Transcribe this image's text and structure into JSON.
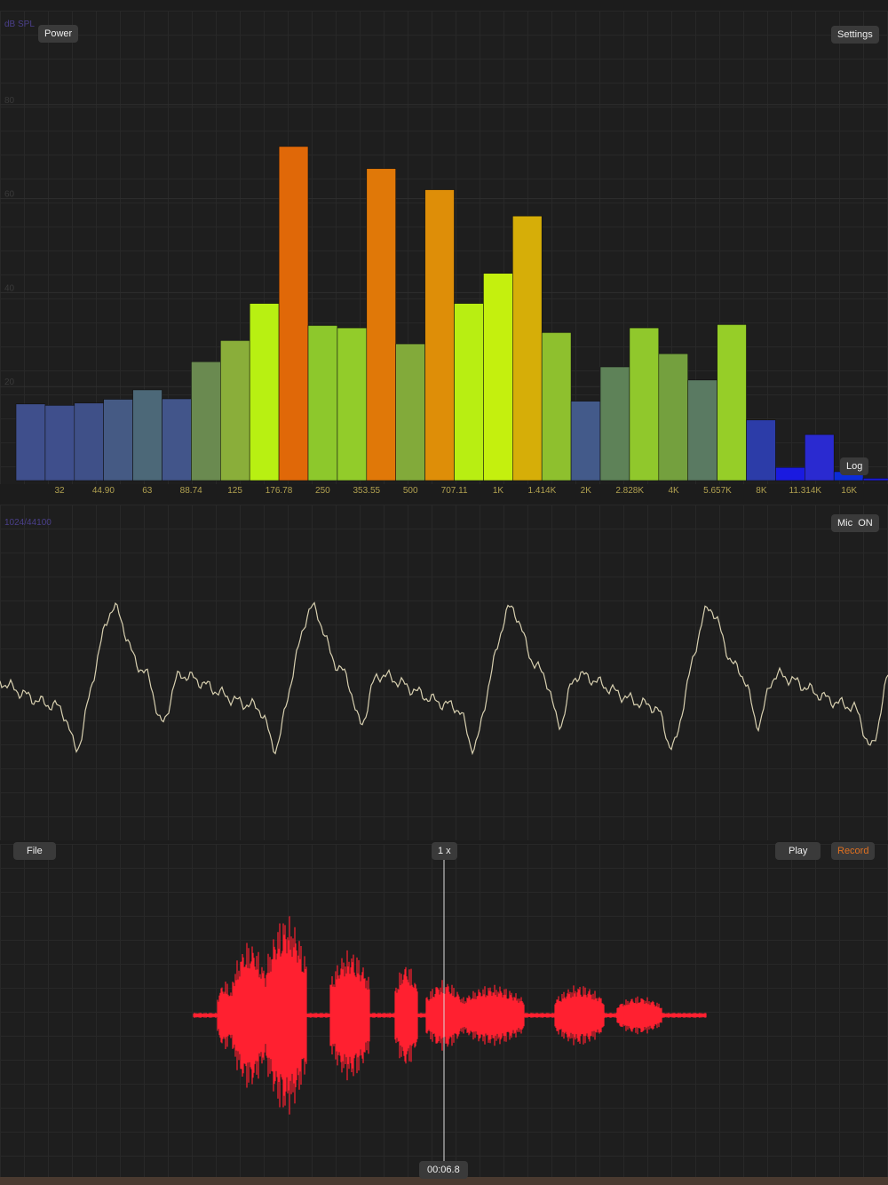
{
  "spectrum": {
    "type": "bar",
    "y_label": "dB SPL",
    "ylim": [
      0,
      100
    ],
    "yticks": [
      20,
      40,
      60,
      80
    ],
    "values": [
      16.3,
      16,
      16.5,
      17.3,
      19.3,
      17.4,
      25.3,
      29.8,
      37.7,
      71.1,
      33,
      32.5,
      66.4,
      29.1,
      61.9,
      37.7,
      44.1,
      56.3,
      31.5,
      16.9,
      24.2,
      32.5,
      27,
      21.4,
      33.2,
      12.9,
      2.8,
      9.8,
      1.9,
      0.5
    ],
    "colors": [
      "#3f4f8c",
      "#3f4f8c",
      "#3f5088",
      "#455a84",
      "#4c6878",
      "#42558a",
      "#6a8a50",
      "#8aae3a",
      "#b8f012",
      "#e06808",
      "#8dc82c",
      "#92cc2a",
      "#e07808",
      "#82aa3a",
      "#de8e08",
      "#b8ee12",
      "#c4f00e",
      "#d6ae08",
      "#8ec02e",
      "#435a8a",
      "#5e8258",
      "#90c82c",
      "#74a03e",
      "#5a7a62",
      "#96ce28",
      "#2c3ca8",
      "#1a1ae0",
      "#2a2ad0",
      "#0c2cd8",
      "#1a1ad8"
    ],
    "xtick_labels": [
      "32",
      "44.90",
      "63",
      "88.74",
      "125",
      "176.78",
      "250",
      "353.55",
      "500",
      "707.11",
      "1K",
      "1.414K",
      "2K",
      "2.828K",
      "4K",
      "5.657K",
      "8K",
      "11.314K",
      "16K"
    ]
  },
  "buttons": {
    "power": "Power",
    "settings": "Settings",
    "log": "Log",
    "mic": "Mic  ON",
    "file": "File",
    "speed": "1 x",
    "play": "Play",
    "record": "Record"
  },
  "waveform_label": "1024/44100",
  "time": "00:06.8"
}
